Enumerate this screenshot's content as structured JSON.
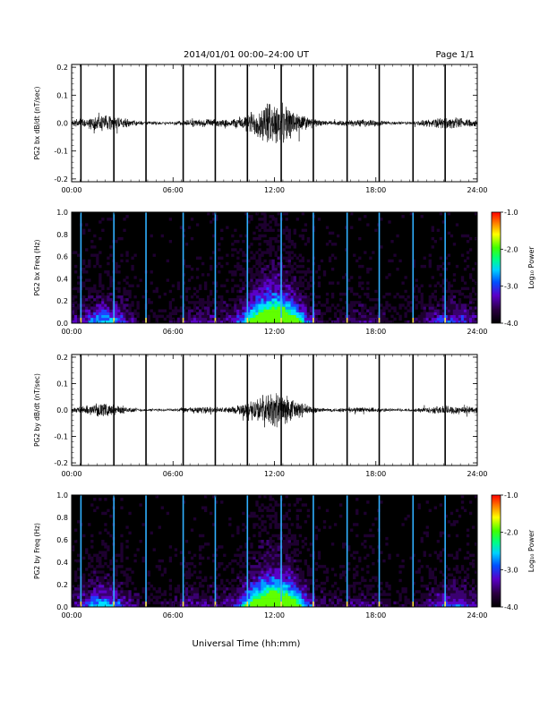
{
  "header": {
    "title": "2014/01/01   00:00–24:00 UT",
    "page": "Page 1/1"
  },
  "footer": {
    "xlabel": "Universal Time (hh:mm)"
  },
  "colors": {
    "background": "#ffffff",
    "axes": "#000000",
    "trace": "#000000",
    "spectrogram_bg": "#000000"
  },
  "chart_data": [
    {
      "type": "line",
      "ylabel": "PG2 bx dB/dt (nT/sec)",
      "x_ticks": [
        "00:00",
        "06:00",
        "12:00",
        "18:00",
        "24:00"
      ],
      "xlim": [
        0,
        24
      ],
      "ylim": [
        -0.21,
        0.21
      ],
      "y_ticks": [
        "0.2",
        "0.1",
        "0.0",
        "-0.1",
        "-0.2"
      ],
      "y_tick_values": [
        0.2,
        0.1,
        0.0,
        -0.1,
        -0.2
      ],
      "spike_hours": [
        0.55,
        2.5,
        4.4,
        6.6,
        8.5,
        10.4,
        12.4,
        14.3,
        16.3,
        18.2,
        20.2,
        22.1
      ]
    },
    {
      "type": "heatmap",
      "ylabel": "PG2 bx Freq (Hz)",
      "x_ticks": [
        "00:00",
        "06:00",
        "12:00",
        "18:00",
        "24:00"
      ],
      "xlim": [
        0,
        24
      ],
      "ylim": [
        0.0,
        1.0
      ],
      "y_ticks": [
        "1.0",
        "0.8",
        "0.6",
        "0.4",
        "0.2",
        "0.0"
      ],
      "y_tick_values": [
        1.0,
        0.8,
        0.6,
        0.4,
        0.2,
        0.0
      ],
      "colorbar": {
        "label": "Log₁₀ Power",
        "ticks": [
          "-1.0",
          "-2.0",
          "-3.0",
          "-4.0"
        ],
        "range": [
          -4.0,
          -1.0
        ]
      },
      "line_hours": [
        0.55,
        2.5,
        4.4,
        6.6,
        8.5,
        10.4,
        12.4,
        14.3,
        16.3,
        18.2,
        20.2,
        22.1
      ]
    },
    {
      "type": "line",
      "ylabel": "PG2 by dB/dt (nT/sec)",
      "x_ticks": [
        "00:00",
        "06:00",
        "12:00",
        "18:00",
        "24:00"
      ],
      "xlim": [
        0,
        24
      ],
      "ylim": [
        -0.21,
        0.21
      ],
      "y_ticks": [
        "0.2",
        "0.1",
        "0.0",
        "-0.1",
        "-0.2"
      ],
      "y_tick_values": [
        0.2,
        0.1,
        0.0,
        -0.1,
        -0.2
      ],
      "spike_hours": [
        0.55,
        2.5,
        4.4,
        6.6,
        8.5,
        10.4,
        12.4,
        14.3,
        16.3,
        18.2,
        20.2,
        22.1
      ]
    },
    {
      "type": "heatmap",
      "ylabel": "PG2 by Freq (Hz)",
      "x_ticks": [
        "00:00",
        "06:00",
        "12:00",
        "18:00",
        "24:00"
      ],
      "xlim": [
        0,
        24
      ],
      "ylim": [
        0.0,
        1.0
      ],
      "y_ticks": [
        "1.0",
        "0.8",
        "0.6",
        "0.4",
        "0.2",
        "0.0"
      ],
      "y_tick_values": [
        1.0,
        0.8,
        0.6,
        0.4,
        0.2,
        0.0
      ],
      "colorbar": {
        "label": "Log₁₀ Power",
        "ticks": [
          "-1.0",
          "-2.0",
          "-3.0",
          "-4.0"
        ],
        "range": [
          -4.0,
          -1.0
        ]
      },
      "line_hours": [
        0.55,
        2.5,
        4.4,
        6.6,
        8.5,
        10.4,
        12.4,
        14.3,
        16.3,
        18.2,
        20.2,
        22.1
      ]
    }
  ]
}
